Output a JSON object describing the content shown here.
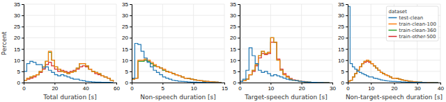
{
  "chart_data": [
    {
      "type": "line",
      "line_style": "step",
      "xlabel": "Total duration [s]",
      "ylabel": "Percent",
      "x": [
        0,
        2,
        4,
        6,
        8,
        10,
        12,
        14,
        16,
        18,
        20,
        22,
        24,
        26,
        28,
        30,
        32,
        34,
        36,
        38,
        40,
        42,
        44,
        46,
        48,
        50,
        52,
        54,
        56,
        58
      ],
      "xlim": [
        0,
        60
      ],
      "xticks": [
        0,
        20,
        40,
        60
      ],
      "ylim": [
        0,
        35
      ],
      "yticks": [
        0,
        5,
        10,
        15,
        20,
        25,
        30,
        35
      ],
      "grid": true,
      "series": [
        {
          "name": "test-clean",
          "values": [
            5.0,
            8.5,
            9.5,
            9.0,
            8.0,
            8.0,
            6.5,
            7.0,
            5.5,
            4.5,
            3.5,
            3.0,
            3.5,
            3.0,
            2.5,
            2.0,
            1.5,
            1.5,
            1.0,
            0.8,
            0.5,
            0.4,
            0.3,
            0.2,
            0.2,
            0.1,
            0.1,
            0.1,
            0.05,
            0.05
          ]
        },
        {
          "name": "train-clean-100",
          "values": [
            1.0,
            2.0,
            2.5,
            3.0,
            3.5,
            5.0,
            7.0,
            9.5,
            14.0,
            10.0,
            7.0,
            6.0,
            5.0,
            4.5,
            4.0,
            4.5,
            5.0,
            6.5,
            8.5,
            8.5,
            7.5,
            6.0,
            5.0,
            4.5,
            4.0,
            3.0,
            2.5,
            2.0,
            1.0,
            0.5
          ]
        },
        {
          "name": "train-clean-360",
          "values": [
            1.0,
            2.0,
            2.5,
            3.0,
            3.5,
            5.0,
            7.0,
            9.5,
            13.5,
            10.0,
            7.0,
            6.0,
            5.0,
            4.5,
            4.0,
            4.5,
            5.0,
            6.5,
            8.5,
            8.5,
            7.5,
            6.0,
            5.0,
            4.5,
            4.0,
            3.0,
            2.5,
            2.0,
            1.0,
            0.5
          ]
        },
        {
          "name": "train-other-500",
          "values": [
            1.0,
            1.5,
            2.0,
            2.5,
            3.5,
            4.5,
            6.0,
            8.0,
            9.0,
            7.5,
            6.0,
            5.0,
            5.5,
            5.0,
            4.5,
            5.0,
            5.5,
            6.0,
            7.0,
            7.5,
            7.0,
            6.0,
            5.0,
            4.0,
            3.5,
            3.0,
            2.5,
            2.0,
            1.0,
            0.5
          ]
        }
      ]
    },
    {
      "type": "line",
      "line_style": "step",
      "xlabel": "Non-speech duration [s]",
      "x": [
        0,
        0.5,
        1,
        1.5,
        2,
        2.5,
        3,
        3.5,
        4,
        4.5,
        5,
        5.5,
        6,
        6.5,
        7,
        7.5,
        8,
        8.5,
        9,
        9.5,
        10,
        10.5,
        11,
        11.5,
        12,
        12.5,
        13,
        13.5,
        14,
        14.5
      ],
      "xlim": [
        0,
        15
      ],
      "xticks": [
        0,
        5,
        10,
        15
      ],
      "ylim": [
        0,
        35
      ],
      "yticks": [
        0,
        5,
        10,
        15,
        20,
        25,
        30,
        35
      ],
      "grid": true,
      "series": [
        {
          "name": "test-clean",
          "values": [
            2.0,
            17.5,
            17.0,
            14.0,
            11.0,
            9.0,
            7.0,
            5.5,
            4.5,
            3.5,
            2.5,
            2.0,
            1.5,
            1.0,
            0.8,
            0.6,
            0.5,
            0.4,
            0.3,
            0.2,
            0.2,
            0.1,
            0.1,
            0.1,
            0.05,
            0.05,
            0.0,
            0.0,
            0.0,
            0.0
          ]
        },
        {
          "name": "train-clean-100",
          "values": [
            1.5,
            2.0,
            10.0,
            10.0,
            10.5,
            10.0,
            9.0,
            8.0,
            7.0,
            6.5,
            6.0,
            5.0,
            4.5,
            4.0,
            3.5,
            3.0,
            2.5,
            2.0,
            1.8,
            1.5,
            1.2,
            1.0,
            0.8,
            0.6,
            0.5,
            0.4,
            0.3,
            0.2,
            0.1,
            0.1
          ]
        },
        {
          "name": "train-clean-360",
          "values": [
            1.5,
            2.0,
            9.5,
            9.5,
            10.0,
            9.5,
            8.5,
            7.5,
            7.0,
            6.5,
            5.5,
            5.0,
            4.5,
            4.0,
            3.5,
            3.0,
            2.5,
            2.0,
            1.8,
            1.5,
            1.2,
            1.0,
            0.8,
            0.6,
            0.5,
            0.4,
            0.3,
            0.2,
            0.1,
            0.1
          ]
        },
        {
          "name": "train-other-500",
          "values": [
            1.5,
            2.0,
            9.5,
            9.5,
            10.0,
            9.5,
            8.5,
            7.5,
            7.0,
            6.5,
            5.5,
            5.0,
            4.5,
            4.0,
            3.5,
            3.0,
            2.5,
            2.0,
            1.8,
            1.5,
            1.2,
            1.0,
            0.8,
            0.6,
            0.5,
            0.4,
            0.3,
            0.2,
            0.1,
            0.1
          ]
        }
      ]
    },
    {
      "type": "line",
      "line_style": "step",
      "xlabel": "Target-speech duration [s]",
      "x": [
        0,
        1,
        2,
        3,
        4,
        5,
        6,
        7,
        8,
        9,
        10,
        11,
        12,
        13,
        14,
        15,
        16,
        17,
        18,
        19,
        20,
        21,
        22,
        23,
        24,
        25,
        26,
        27,
        28,
        29
      ],
      "xlim": [
        0,
        30
      ],
      "xticks": [
        0,
        10,
        20,
        30
      ],
      "ylim": [
        0,
        35
      ],
      "yticks": [
        0,
        5,
        10,
        15,
        20,
        25,
        30,
        35
      ],
      "grid": true,
      "series": [
        {
          "name": "test-clean",
          "values": [
            0.5,
            1.5,
            5.5,
            15.5,
            12.0,
            8.5,
            5.5,
            4.5,
            5.0,
            4.0,
            3.0,
            3.5,
            3.0,
            2.5,
            2.0,
            1.5,
            1.2,
            1.0,
            0.8,
            0.6,
            0.4,
            0.3,
            0.2,
            0.1,
            0.1,
            0.05,
            0.05,
            0.0,
            0.0,
            0.0
          ]
        },
        {
          "name": "train-clean-100",
          "values": [
            0.5,
            0.8,
            1.5,
            3.5,
            5.5,
            8.0,
            12.0,
            14.0,
            13.0,
            13.5,
            20.0,
            18.0,
            10.0,
            5.5,
            3.5,
            2.5,
            1.5,
            1.0,
            0.8,
            0.6,
            0.4,
            0.3,
            0.2,
            0.1,
            0.1,
            0.05,
            0.0,
            0.0,
            0.0,
            0.0
          ]
        },
        {
          "name": "train-clean-360",
          "values": [
            0.5,
            0.8,
            1.5,
            3.5,
            5.5,
            8.0,
            12.0,
            14.0,
            13.0,
            13.5,
            20.0,
            18.0,
            10.0,
            5.5,
            3.5,
            2.5,
            1.5,
            1.0,
            0.8,
            0.6,
            0.4,
            0.3,
            0.2,
            0.1,
            0.1,
            0.05,
            0.0,
            0.0,
            0.0,
            0.0
          ]
        },
        {
          "name": "train-other-500",
          "values": [
            0.5,
            0.8,
            1.5,
            3.5,
            5.0,
            7.5,
            11.0,
            13.0,
            12.5,
            13.0,
            18.0,
            18.0,
            10.5,
            6.0,
            4.0,
            2.8,
            1.8,
            1.2,
            0.9,
            0.7,
            0.5,
            0.3,
            0.2,
            0.1,
            0.1,
            0.05,
            0.0,
            0.0,
            0.0,
            0.0
          ]
        }
      ]
    },
    {
      "type": "line",
      "line_style": "step",
      "xlabel": "Non-target-speech duration [s]",
      "x": [
        0,
        1,
        2,
        3,
        4,
        5,
        6,
        7,
        8,
        9,
        10,
        11,
        12,
        13,
        14,
        15,
        16,
        17,
        18,
        19,
        20,
        21,
        22,
        23,
        24,
        25,
        26,
        27,
        28,
        29,
        30,
        31,
        32,
        33,
        34,
        35,
        36,
        37,
        38,
        39
      ],
      "xlim": [
        0,
        40
      ],
      "xticks": [
        0,
        10,
        20,
        30,
        40
      ],
      "ylim": [
        0,
        35
      ],
      "yticks": [
        0,
        5,
        10,
        15,
        20,
        25,
        30,
        35
      ],
      "grid": true,
      "legend": "upper right",
      "legend_title": "dataset",
      "series": [
        {
          "name": "test-clean",
          "values": [
            34.0,
            8.5,
            7.0,
            6.0,
            5.0,
            4.5,
            4.0,
            3.5,
            3.0,
            2.5,
            2.5,
            2.0,
            1.8,
            1.5,
            1.2,
            1.0,
            0.8,
            0.7,
            0.6,
            0.5,
            0.5,
            0.4,
            0.4,
            0.3,
            0.3,
            0.2,
            0.2,
            0.2,
            0.1,
            0.1,
            0.1,
            0.1,
            0.05,
            0.05,
            0.0,
            0.0,
            0.0,
            0.0,
            0.0,
            0.0
          ]
        },
        {
          "name": "train-clean-100",
          "values": [
            0.5,
            1.0,
            2.5,
            4.0,
            5.5,
            7.0,
            8.5,
            9.5,
            10.0,
            9.5,
            8.5,
            7.5,
            6.5,
            5.5,
            4.5,
            4.0,
            3.5,
            3.0,
            2.5,
            2.0,
            2.0,
            1.8,
            1.5,
            1.2,
            1.0,
            0.8,
            0.6,
            0.5,
            0.4,
            0.3,
            0.2,
            0.2,
            0.1,
            0.1,
            0.1,
            0.05,
            0.05,
            0.0,
            0.0,
            0.0
          ]
        },
        {
          "name": "train-clean-360",
          "values": [
            0.5,
            1.0,
            2.5,
            4.0,
            5.5,
            7.0,
            8.5,
            9.5,
            10.0,
            9.5,
            8.5,
            7.5,
            6.5,
            5.5,
            4.5,
            4.0,
            3.5,
            3.0,
            2.5,
            2.0,
            2.0,
            1.8,
            1.5,
            1.2,
            1.0,
            0.8,
            0.6,
            0.5,
            0.4,
            0.3,
            0.2,
            0.2,
            0.1,
            0.1,
            0.1,
            0.05,
            0.05,
            0.0,
            0.0,
            0.0
          ]
        },
        {
          "name": "train-other-500",
          "values": [
            0.5,
            1.0,
            2.5,
            4.0,
            5.5,
            7.0,
            8.5,
            9.0,
            9.5,
            9.0,
            8.5,
            7.5,
            6.5,
            5.5,
            4.5,
            4.0,
            3.5,
            3.0,
            2.5,
            2.0,
            2.0,
            1.8,
            1.5,
            1.2,
            1.0,
            0.8,
            0.6,
            0.5,
            0.4,
            0.3,
            0.2,
            0.2,
            0.1,
            0.1,
            0.1,
            0.05,
            0.05,
            0.0,
            0.0,
            0.0
          ]
        }
      ]
    }
  ]
}
